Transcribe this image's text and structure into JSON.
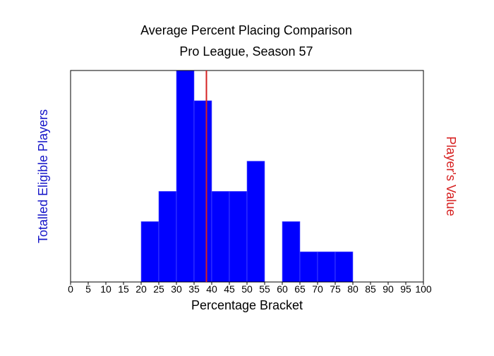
{
  "chart_data": {
    "type": "bar",
    "title": "Average Percent Placing Comparison",
    "subtitle": "Pro League, Season 57",
    "xlabel": "Percentage Bracket",
    "ylabel": "Totalled Eligible Players",
    "y2label": "Player's Value",
    "xlim": [
      0,
      100
    ],
    "ylim": [
      0,
      7
    ],
    "x_ticks": [
      "0",
      "5",
      "10",
      "15",
      "20",
      "25",
      "30",
      "35",
      "40",
      "45",
      "50",
      "55",
      "60",
      "65",
      "70",
      "75",
      "80",
      "85",
      "90",
      "95",
      "100"
    ],
    "bin_width": 5,
    "bins": [
      {
        "start": 20,
        "value": 2
      },
      {
        "start": 25,
        "value": 3
      },
      {
        "start": 30,
        "value": 7
      },
      {
        "start": 35,
        "value": 6
      },
      {
        "start": 40,
        "value": 3
      },
      {
        "start": 45,
        "value": 3
      },
      {
        "start": 50,
        "value": 4
      },
      {
        "start": 60,
        "value": 2
      },
      {
        "start": 65,
        "value": 1
      },
      {
        "start": 70,
        "value": 1
      },
      {
        "start": 75,
        "value": 1
      }
    ],
    "player_value": 38.5,
    "colors": {
      "bar": "#0000ff",
      "bar_edge": "#5a5aff",
      "marker": "#d62020",
      "ylabel": "#1515c8",
      "y2label": "#d62020",
      "text": "#000000"
    }
  }
}
